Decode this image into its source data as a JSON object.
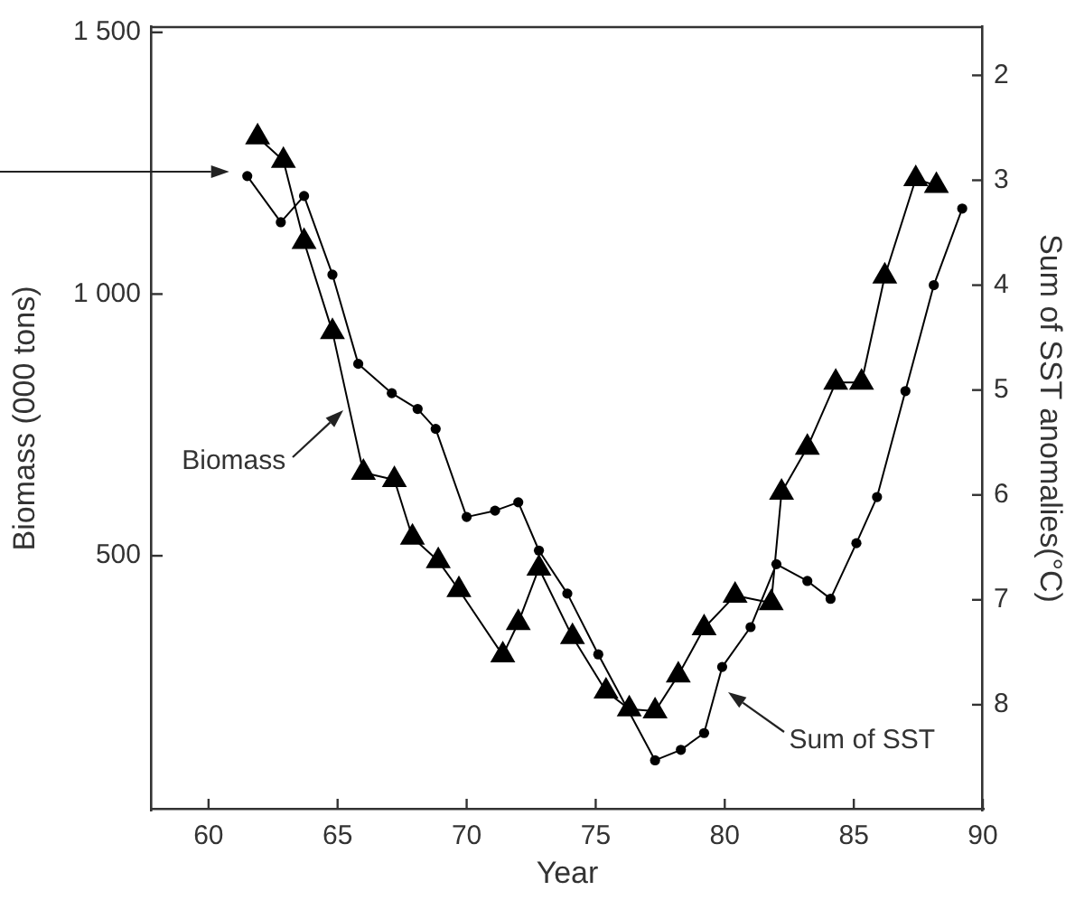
{
  "chart_data": {
    "type": "line",
    "xlabel": "Year",
    "ylabel": "Biomass (000 tons)",
    "y2label": "Sum of SST anomalies(°C)",
    "xlim": [
      57.8,
      90
    ],
    "xticks": [
      60,
      65,
      70,
      75,
      80,
      85,
      90
    ],
    "ylim": [
      15,
      1510
    ],
    "yticks": [
      {
        "value": 500,
        "label": "500"
      },
      {
        "value": 1000,
        "label": "1 000"
      },
      {
        "value": 1500,
        "label": "1 500"
      }
    ],
    "y2lim": [
      9.0,
      1.54
    ],
    "y2ticks": [
      2,
      3,
      4,
      5,
      6,
      7,
      8
    ],
    "grid": false,
    "legend": false,
    "line_style": "solid",
    "series": [
      {
        "name": "Biomass",
        "color": "#000000",
        "marker": "triangle",
        "x": [
          61.9,
          62.9,
          63.7,
          64.8,
          66.0,
          67.2,
          67.9,
          68.9,
          69.7,
          71.4,
          72.0,
          72.8,
          74.1,
          75.4,
          76.3,
          77.3,
          78.2,
          79.2,
          80.4,
          81.8,
          82.2,
          83.2,
          84.3,
          85.3,
          86.2,
          87.4,
          88.2
        ],
        "values": [
          1300,
          1255,
          1100,
          928,
          659,
          645,
          535,
          490,
          435,
          310,
          372,
          476,
          345,
          241,
          207,
          203,
          272,
          362,
          424,
          410,
          621,
          707,
          831,
          831,
          1034,
          1220,
          1207
        ]
      },
      {
        "name": "Sum of SST",
        "color": "#000000",
        "marker": "circle",
        "axis": "y2",
        "x": [
          61.5,
          62.8,
          63.7,
          64.8,
          65.8,
          67.1,
          68.1,
          68.8,
          70.0,
          71.1,
          72.0,
          72.8,
          73.9,
          75.1,
          77.3,
          78.3,
          79.2,
          79.9,
          81.0,
          82.0,
          83.2,
          84.1,
          85.1,
          85.9,
          87.0,
          88.1,
          89.2
        ],
        "values": [
          2.96,
          3.4,
          3.15,
          3.9,
          4.75,
          5.03,
          5.18,
          5.37,
          6.21,
          6.15,
          6.07,
          6.53,
          6.94,
          7.52,
          8.53,
          8.43,
          8.27,
          7.64,
          7.26,
          6.66,
          6.82,
          6.99,
          6.46,
          6.02,
          5.01,
          4.0,
          3.27
        ]
      }
    ]
  }
}
